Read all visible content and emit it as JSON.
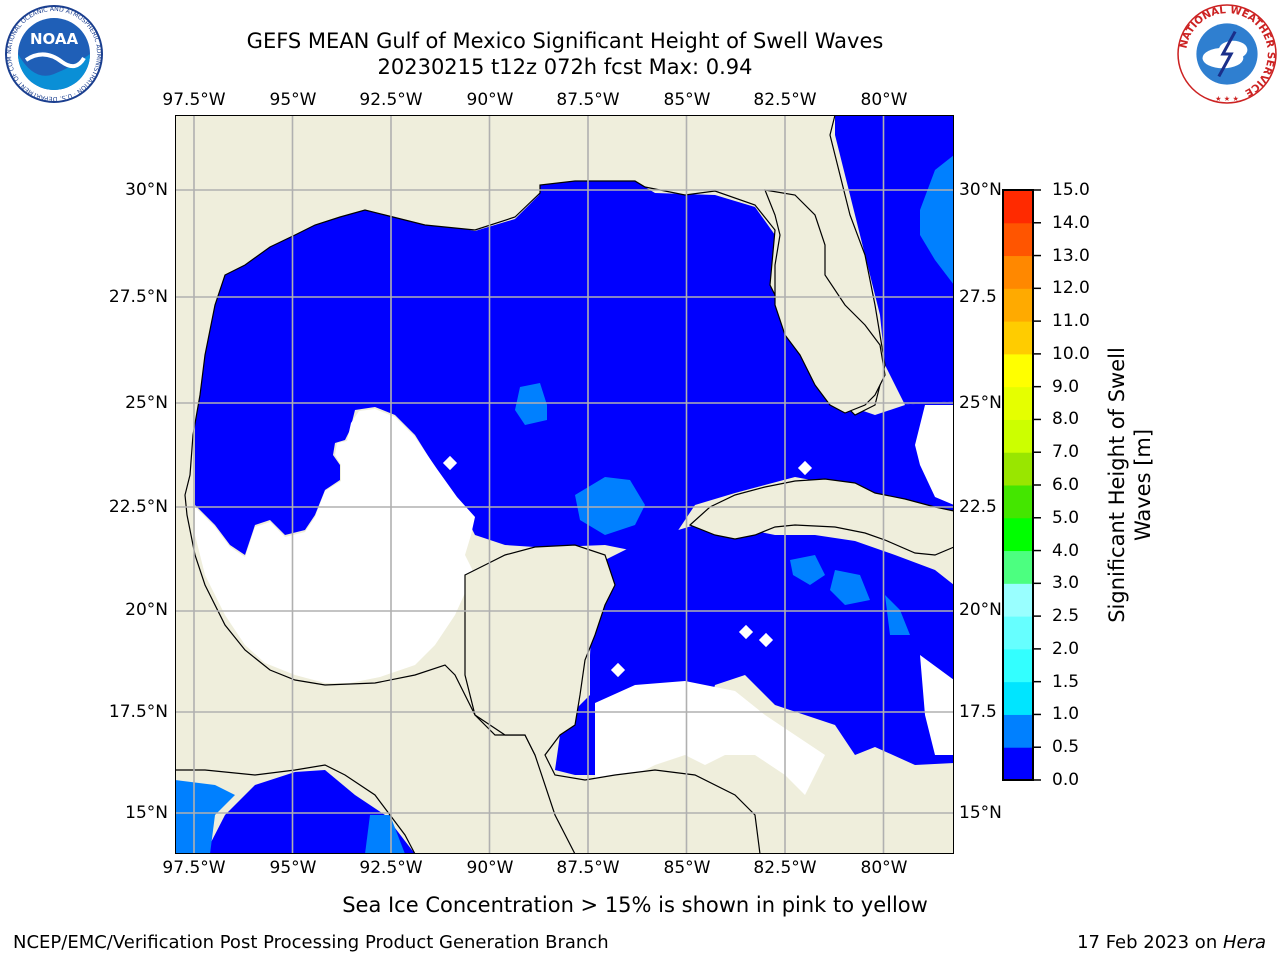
{
  "header": {
    "title_line1": "GEFS MEAN Gulf of Mexico Significant Height of Swell Waves",
    "title_line2": "20230215 t12z 072h fcst   Max: 0.94"
  },
  "logos": {
    "noaa_text": "NOAA",
    "noaa_ring_text": "NATIONAL OCEANIC AND ATMOSPHERIC ADMINISTRATION · U.S. DEPARTMENT OF COMMERCE",
    "nws_ring_text": "NATIONAL WEATHER SERVICE"
  },
  "map": {
    "lon_ticks": [
      "97.5°W",
      "95°W",
      "92.5°W",
      "90°W",
      "87.5°W",
      "85°W",
      "82.5°W",
      "80°W"
    ],
    "lat_ticks": [
      "30°N",
      "27.5°N",
      "25°N",
      "22.5°N",
      "20°N",
      "17.5°N",
      "15°N"
    ],
    "lat_ticks_right": [
      "30°N",
      "27.5",
      "25°N",
      "22.5",
      "20°N",
      "17.5",
      "15°N"
    ],
    "colors": {
      "land": "#efeedc",
      "sea_low": "#0000ff",
      "sea_mid": "#0080ff",
      "no_data": "#ffffff",
      "grid": "#b0b0b0"
    }
  },
  "colorbar": {
    "label_line1": "Significant Height of Swell",
    "label_line2": "Waves [m]",
    "levels": [
      "0.0",
      "0.5",
      "1.0",
      "1.5",
      "2.0",
      "2.5",
      "3.0",
      "4.0",
      "5.0",
      "6.0",
      "7.0",
      "8.0",
      "9.0",
      "10.0",
      "11.0",
      "12.0",
      "13.0",
      "14.0",
      "15.0"
    ],
    "colors": [
      "#0000ff",
      "#0080ff",
      "#00e5ff",
      "#33ffff",
      "#66ffff",
      "#99ffff",
      "#4cff80",
      "#00ff00",
      "#44e600",
      "#99e600",
      "#ccff00",
      "#e5ff00",
      "#ffff00",
      "#ffcc00",
      "#ffaa00",
      "#ff8800",
      "#ff5500",
      "#ff2a00"
    ]
  },
  "footer": {
    "note": "Sea Ice Concentration > 15% is shown in pink to yellow",
    "left": "NCEP/EMC/Verification Post Processing Product Generation Branch",
    "date": "17 Feb 2023 on ",
    "machine": "Hera"
  }
}
